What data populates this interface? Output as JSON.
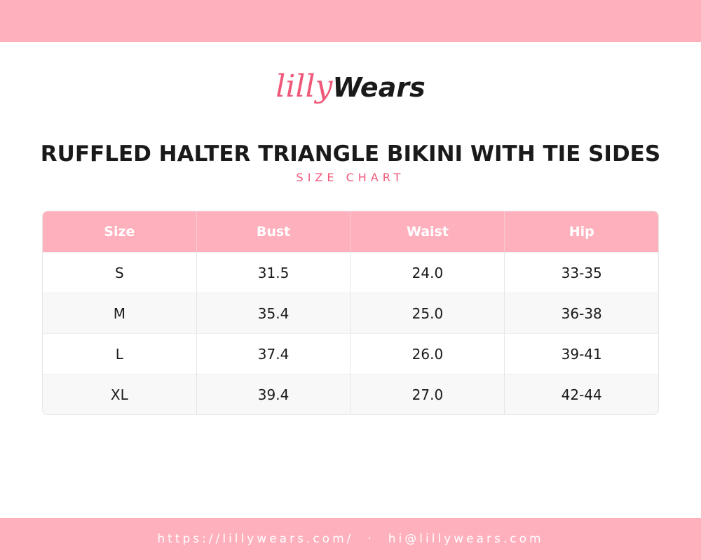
{
  "logo": {
    "script": "lilly",
    "brand": "Wears"
  },
  "header": {
    "title": "RUFFLED HALTER TRIANGLE BIKINI WITH TIE SIDES",
    "subtitle": "SIZE CHART"
  },
  "table": {
    "columns": [
      "Size",
      "Bust",
      "Waist",
      "Hip"
    ],
    "rows": [
      [
        "S",
        "31.5",
        "24.0",
        "33-35"
      ],
      [
        "M",
        "35.4",
        "25.0",
        "36-38"
      ],
      [
        "L",
        "37.4",
        "26.0",
        "39-41"
      ],
      [
        "XL",
        "39.4",
        "27.0",
        "42-44"
      ]
    ]
  },
  "footer": {
    "website": "https://lillywears.com/",
    "separator": "·",
    "email": "hi@lillywears.com"
  }
}
